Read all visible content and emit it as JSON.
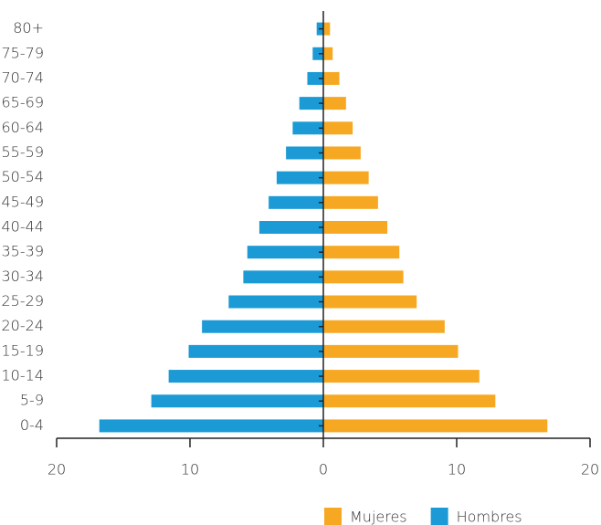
{
  "chart_data": {
    "type": "bar",
    "categories": [
      "0-4",
      "5-9",
      "10-14",
      "15-19",
      "20-24",
      "25-29",
      "30-34",
      "35-39",
      "40-44",
      "45-49",
      "50-54",
      "55-59",
      "60-64",
      "65-69",
      "70-74",
      "75-79",
      "80+"
    ],
    "series": [
      {
        "name": "Mujeres",
        "color": "#f7a823",
        "values": [
          16.8,
          12.9,
          11.7,
          10.1,
          9.1,
          7.0,
          6.0,
          5.7,
          4.8,
          4.1,
          3.4,
          2.8,
          2.2,
          1.7,
          1.2,
          0.7,
          0.5
        ]
      },
      {
        "name": "Hombres",
        "color": "#1b9ad6",
        "values": [
          -16.8,
          -12.9,
          -11.6,
          -10.1,
          -9.1,
          -7.1,
          -6.0,
          -5.7,
          -4.8,
          -4.1,
          -3.5,
          -2.8,
          -2.3,
          -1.8,
          -1.2,
          -0.8,
          -0.5
        ]
      }
    ],
    "xlim": [
      -20,
      20
    ],
    "xticks": [
      {
        "value": -20,
        "label": "20"
      },
      {
        "value": -10,
        "label": "10"
      },
      0,
      10,
      20
    ]
  }
}
